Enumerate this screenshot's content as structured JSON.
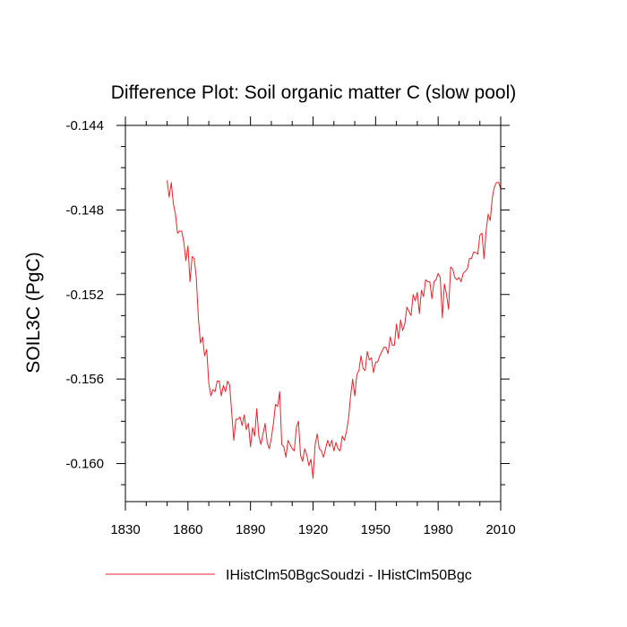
{
  "chart_data": {
    "type": "line",
    "title": "Difference Plot: Soil organic matter C (slow pool)",
    "xlabel": "",
    "ylabel": "SOIL3C  (PgC)",
    "xlim": [
      1830,
      2010
    ],
    "ylim": [
      -0.1618,
      -0.144
    ],
    "x_ticks": [
      1830,
      1860,
      1890,
      1920,
      1950,
      1980,
      2010
    ],
    "x_tick_labels": [
      "1830",
      "1860",
      "1890",
      "1920",
      "1950",
      "1980",
      "2010"
    ],
    "y_ticks": [
      -0.144,
      -0.148,
      -0.152,
      -0.156,
      -0.16
    ],
    "y_tick_labels": [
      "-0.144",
      "-0.148",
      "-0.152",
      "-0.156",
      "-0.160"
    ],
    "grid": false,
    "legend_position": "bottom",
    "series": [
      {
        "name": "IHistClm50BgcSoudzi - IHistClm50Bgc",
        "color": "#e8232a",
        "x": [
          1850,
          1851,
          1852,
          1853,
          1854,
          1855,
          1856,
          1857,
          1858,
          1859,
          1860,
          1861,
          1862,
          1863,
          1864,
          1865,
          1866,
          1867,
          1868,
          1869,
          1870,
          1871,
          1872,
          1873,
          1874,
          1875,
          1876,
          1877,
          1878,
          1879,
          1880,
          1881,
          1882,
          1883,
          1884,
          1885,
          1886,
          1887,
          1888,
          1889,
          1890,
          1891,
          1892,
          1893,
          1894,
          1895,
          1896,
          1897,
          1898,
          1899,
          1900,
          1901,
          1902,
          1903,
          1904,
          1905,
          1906,
          1907,
          1908,
          1909,
          1910,
          1911,
          1912,
          1913,
          1914,
          1915,
          1916,
          1917,
          1918,
          1919,
          1920,
          1921,
          1922,
          1923,
          1924,
          1925,
          1926,
          1927,
          1928,
          1929,
          1930,
          1931,
          1932,
          1933,
          1934,
          1935,
          1936,
          1937,
          1938,
          1939,
          1940,
          1941,
          1942,
          1943,
          1944,
          1945,
          1946,
          1947,
          1948,
          1949,
          1950,
          1951,
          1952,
          1953,
          1954,
          1955,
          1956,
          1957,
          1958,
          1959,
          1960,
          1961,
          1962,
          1963,
          1964,
          1965,
          1966,
          1967,
          1968,
          1969,
          1970,
          1971,
          1972,
          1973,
          1974,
          1975,
          1976,
          1977,
          1978,
          1979,
          1980,
          1981,
          1982,
          1983,
          1984,
          1985,
          1986,
          1987,
          1988,
          1989,
          1990,
          1991,
          1992,
          1993,
          1994,
          1995,
          1996,
          1997,
          1998,
          1999,
          2000,
          2001,
          2002,
          2003,
          2004,
          2005,
          2006,
          2007,
          2008,
          2009,
          2010
        ],
        "values": [
          -0.1466,
          -0.1474,
          -0.1467,
          -0.1477,
          -0.1482,
          -0.1491,
          -0.149,
          -0.149,
          -0.1495,
          -0.1504,
          -0.1497,
          -0.1514,
          -0.1502,
          -0.1503,
          -0.1512,
          -0.1531,
          -0.1543,
          -0.154,
          -0.1549,
          -0.1546,
          -0.1562,
          -0.1568,
          -0.1565,
          -0.1566,
          -0.1561,
          -0.1561,
          -0.1568,
          -0.1563,
          -0.1566,
          -0.1561,
          -0.1563,
          -0.1576,
          -0.1589,
          -0.1579,
          -0.1579,
          -0.1578,
          -0.1582,
          -0.1577,
          -0.1584,
          -0.1581,
          -0.1592,
          -0.1583,
          -0.1587,
          -0.1574,
          -0.1587,
          -0.1591,
          -0.1586,
          -0.1581,
          -0.159,
          -0.1593,
          -0.1588,
          -0.1581,
          -0.1572,
          -0.1573,
          -0.1566,
          -0.1591,
          -0.1592,
          -0.1597,
          -0.1589,
          -0.1591,
          -0.1593,
          -0.1594,
          -0.1583,
          -0.158,
          -0.1596,
          -0.1599,
          -0.1593,
          -0.1596,
          -0.1601,
          -0.1598,
          -0.1607,
          -0.1591,
          -0.1586,
          -0.1593,
          -0.1594,
          -0.1597,
          -0.1593,
          -0.1589,
          -0.1592,
          -0.1589,
          -0.1594,
          -0.159,
          -0.1593,
          -0.1594,
          -0.1587,
          -0.1589,
          -0.1585,
          -0.1579,
          -0.1568,
          -0.156,
          -0.1568,
          -0.1558,
          -0.1556,
          -0.1549,
          -0.1555,
          -0.1556,
          -0.1547,
          -0.1551,
          -0.155,
          -0.1557,
          -0.1552,
          -0.1552,
          -0.1549,
          -0.1547,
          -0.1545,
          -0.1545,
          -0.1548,
          -0.154,
          -0.1544,
          -0.1544,
          -0.1534,
          -0.1541,
          -0.1532,
          -0.1537,
          -0.1534,
          -0.1526,
          -0.1528,
          -0.153,
          -0.152,
          -0.1523,
          -0.1519,
          -0.1529,
          -0.1518,
          -0.1521,
          -0.1513,
          -0.1514,
          -0.1514,
          -0.1522,
          -0.1514,
          -0.1513,
          -0.151,
          -0.1512,
          -0.1531,
          -0.1515,
          -0.152,
          -0.1527,
          -0.1507,
          -0.1508,
          -0.1512,
          -0.1513,
          -0.1512,
          -0.1514,
          -0.151,
          -0.1509,
          -0.1508,
          -0.1503,
          -0.1503,
          -0.15,
          -0.15,
          -0.1501,
          -0.1492,
          -0.1491,
          -0.1503,
          -0.149,
          -0.1482,
          -0.1485,
          -0.1474,
          -0.1469,
          -0.1467,
          -0.1467,
          -0.147
        ]
      }
    ]
  }
}
